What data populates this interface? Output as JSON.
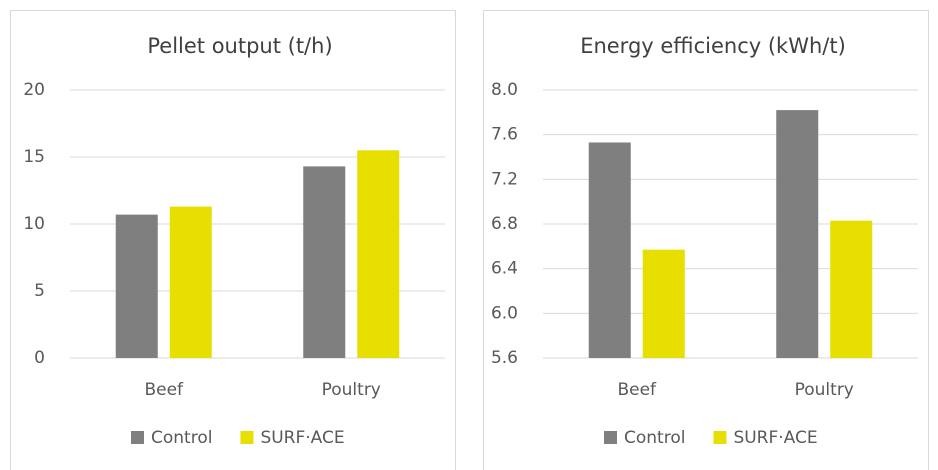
{
  "chart_data": [
    {
      "type": "bar",
      "title": "Pellet output (t/h)",
      "categories": [
        "Beef",
        "Poultry"
      ],
      "series": [
        {
          "name": "Control",
          "color": "#7f7f7f",
          "values": [
            10.7,
            14.3
          ]
        },
        {
          "name": "SURF·ACE",
          "color": "#e6df00",
          "values": [
            11.3,
            15.5
          ]
        }
      ],
      "ylim": [
        0,
        20
      ],
      "yticks": [
        0,
        5,
        10,
        15,
        20
      ],
      "grid": true,
      "legend": "bottom"
    },
    {
      "type": "bar",
      "title": "Energy efficiency (kWh/t)",
      "categories": [
        "Beef",
        "Poultry"
      ],
      "series": [
        {
          "name": "Control",
          "color": "#7f7f7f",
          "values": [
            7.53,
            7.82
          ]
        },
        {
          "name": "SURF·ACE",
          "color": "#e6df00",
          "values": [
            6.57,
            6.83
          ]
        }
      ],
      "ylim": [
        5.6,
        8.0
      ],
      "yticks": [
        5.6,
        {
          "value": 6,
          "label": "6.0"
        },
        6.4,
        6.8,
        7.2,
        7.6,
        {
          "value": 8,
          "label": "8.0"
        }
      ],
      "grid": true,
      "legend": "bottom"
    }
  ]
}
